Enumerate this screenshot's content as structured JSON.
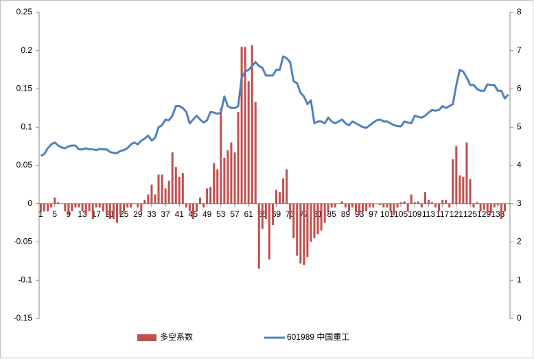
{
  "chart_data": {
    "type": "bar-line",
    "categories": [
      "1",
      null,
      null,
      null,
      "5",
      null,
      null,
      null,
      "9",
      null,
      null,
      null,
      "13",
      null,
      null,
      null,
      "17",
      null,
      null,
      null,
      "21",
      null,
      null,
      null,
      "25",
      null,
      null,
      null,
      "29",
      null,
      null,
      null,
      "33",
      null,
      null,
      null,
      "37",
      null,
      null,
      null,
      "41",
      null,
      null,
      null,
      "45",
      null,
      null,
      null,
      "49",
      null,
      null,
      null,
      "53",
      null,
      null,
      null,
      "57",
      null,
      null,
      null,
      "61",
      null,
      null,
      null,
      "65",
      null,
      null,
      null,
      "69",
      null,
      null,
      null,
      "73",
      null,
      null,
      null,
      "77",
      null,
      null,
      null,
      "81",
      null,
      null,
      null,
      "85",
      null,
      null,
      null,
      "89",
      null,
      null,
      null,
      "93",
      null,
      null,
      null,
      "97",
      null,
      null,
      null,
      "101",
      null,
      null,
      null,
      "105",
      null,
      null,
      null,
      "109",
      null,
      null,
      null,
      "113",
      null,
      null,
      null,
      "117",
      null,
      null,
      null,
      "121",
      null,
      null,
      null,
      "125",
      null,
      null,
      null,
      "129",
      null,
      null,
      null,
      "133",
      null,
      null,
      null
    ],
    "series": [
      {
        "name": "多空系数",
        "color": "#c0504d",
        "kind": "bar",
        "values": [
          -0.01,
          -0.01,
          -0.01,
          -0.005,
          0.008,
          0.002,
          0,
          -0.01,
          -0.015,
          -0.01,
          -0.005,
          -0.005,
          -0.01,
          -0.015,
          -0.01,
          -0.02,
          -0.005,
          -0.005,
          -0.01,
          -0.015,
          -0.02,
          -0.02,
          -0.025,
          -0.015,
          -0.01,
          -0.005,
          -0.005,
          0,
          -0.005,
          -0.01,
          0.005,
          0.012,
          0.025,
          0.012,
          0.038,
          0.038,
          0.02,
          0.03,
          0.067,
          0.048,
          0.035,
          0.04,
          -0.005,
          -0.01,
          -0.02,
          -0.01,
          0.008,
          -0.005,
          0.02,
          0.022,
          0.053,
          0.045,
          0.125,
          0.06,
          0.07,
          0.08,
          0.067,
          0.12,
          0.205,
          0.205,
          0.16,
          0.207,
          0.133,
          -0.085,
          -0.033,
          -0.02,
          -0.073,
          -0.028,
          0.018,
          0.015,
          0.033,
          0.045,
          -0.02,
          -0.045,
          -0.068,
          -0.078,
          -0.08,
          -0.07,
          -0.05,
          -0.045,
          -0.04,
          -0.035,
          -0.025,
          -0.01,
          -0.005,
          -0.005,
          0,
          0.003,
          -0.005,
          -0.01,
          -0.005,
          -0.01,
          -0.015,
          -0.01,
          -0.01,
          -0.005,
          -0.005,
          0,
          -0.002,
          -0.005,
          -0.005,
          -0.01,
          -0.015,
          -0.005,
          0.002,
          0.003,
          -0.01,
          0.012,
          0.002,
          0.003,
          -0.005,
          0.015,
          0.005,
          0.002,
          -0.005,
          -0.01,
          0.005,
          0.005,
          -0.005,
          0.058,
          0.075,
          0.037,
          0.035,
          0.08,
          0.032,
          -0.005,
          0.002,
          -0.01,
          -0.008,
          -0.012,
          -0.012,
          -0.005,
          -0.002,
          -0.02,
          -0.01,
          0
        ]
      },
      {
        "name": "601989 中国重工",
        "color": "#4f81bd",
        "kind": "line",
        "axis": "y2",
        "values": [
          4.25,
          4.3,
          4.45,
          4.55,
          4.6,
          4.52,
          4.47,
          4.45,
          4.5,
          4.52,
          4.52,
          4.42,
          4.42,
          4.45,
          4.42,
          4.42,
          4.4,
          4.43,
          4.42,
          4.42,
          4.35,
          4.33,
          4.32,
          4.38,
          4.4,
          4.45,
          4.55,
          4.6,
          4.55,
          4.65,
          4.7,
          4.78,
          4.65,
          4.72,
          5.0,
          5.05,
          5.2,
          5.18,
          5.3,
          5.55,
          5.55,
          5.5,
          5.4,
          5.1,
          5.2,
          5.3,
          5.2,
          5.12,
          5.18,
          5.4,
          5.38,
          5.35,
          5.38,
          5.8,
          5.55,
          5.5,
          5.5,
          5.55,
          6.3,
          6.45,
          6.5,
          6.6,
          6.7,
          6.6,
          6.55,
          6.35,
          6.35,
          6.35,
          6.5,
          6.5,
          6.85,
          6.8,
          6.7,
          6.2,
          6.15,
          5.9,
          5.8,
          5.6,
          5.7,
          5.1,
          5.15,
          5.15,
          5.1,
          5.25,
          5.15,
          5.1,
          5.15,
          5.2,
          5.1,
          5.05,
          5.15,
          5.1,
          5.05,
          5.0,
          4.98,
          5.05,
          5.12,
          5.18,
          5.2,
          5.15,
          5.15,
          5.1,
          5.05,
          5.03,
          5.02,
          5.15,
          5.12,
          5.1,
          5.3,
          5.27,
          5.25,
          5.3,
          5.38,
          5.45,
          5.43,
          5.45,
          5.55,
          5.5,
          5.55,
          5.6,
          6.1,
          6.5,
          6.45,
          6.3,
          6.1,
          6.1,
          6.0,
          5.95,
          5.95,
          6.12,
          6.1,
          6.1,
          5.95,
          5.95,
          5.75,
          5.85
        ]
      }
    ],
    "ylim": [
      -0.15,
      0.25
    ],
    "yticks": [
      -0.15,
      -0.1,
      -0.05,
      0,
      0.05,
      0.1,
      0.15,
      0.2,
      0.25
    ],
    "y2lim": [
      0,
      8
    ],
    "y2ticks": [
      0,
      1,
      2,
      3,
      4,
      5,
      6,
      7,
      8
    ],
    "legend": "bottom"
  }
}
